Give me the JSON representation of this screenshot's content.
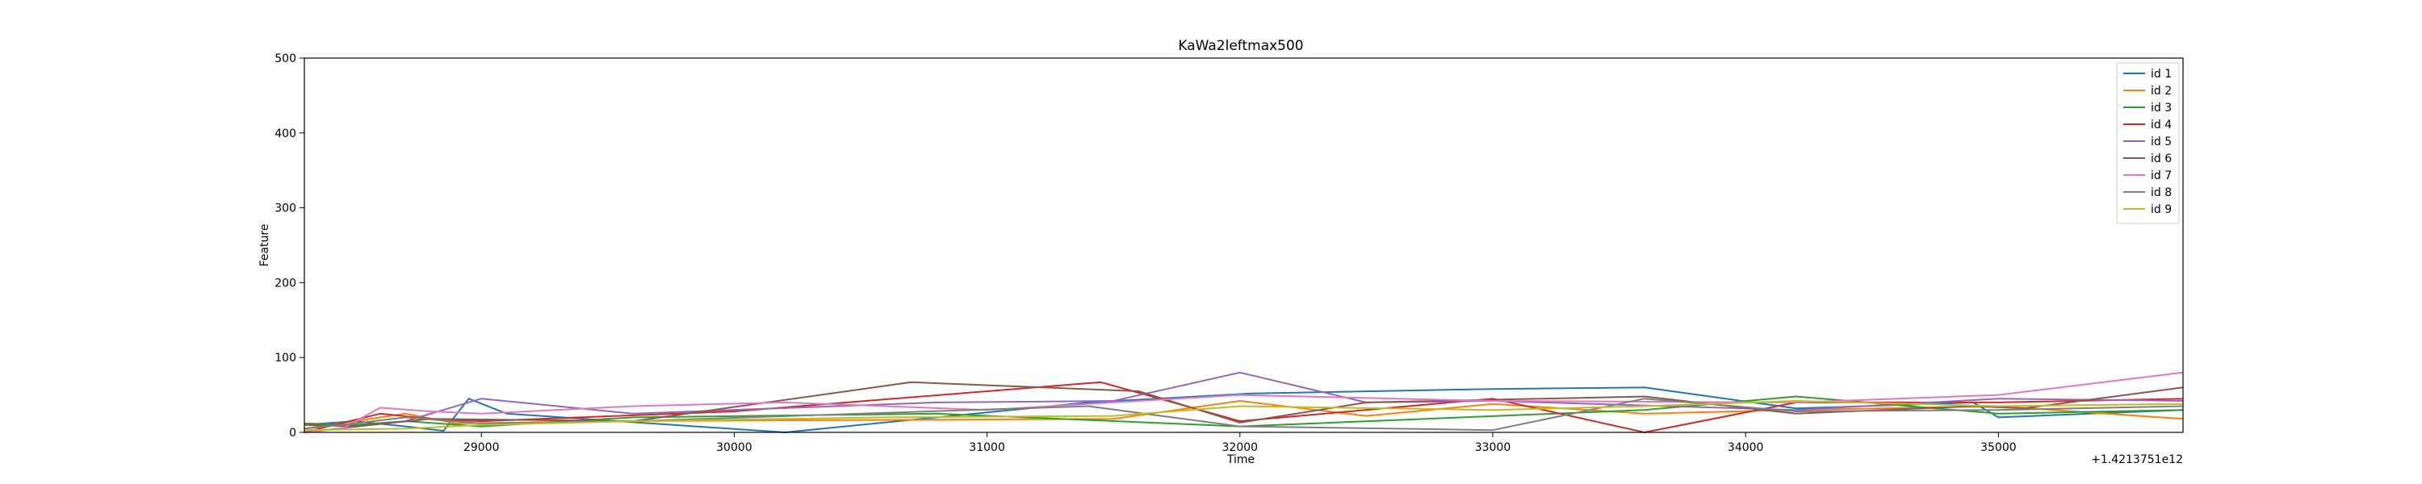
{
  "chart_data": {
    "type": "line",
    "title": "KaWa2leftmax500",
    "xlabel": "Time",
    "ylabel": "Feature",
    "x_offset_label": "+1.4213751e12",
    "xlim": [
      28300,
      35730
    ],
    "ylim": [
      0,
      500
    ],
    "x_ticks": [
      29000,
      30000,
      31000,
      32000,
      33000,
      34000,
      35000
    ],
    "y_ticks": [
      0,
      100,
      200,
      300,
      400,
      500
    ],
    "grid": false,
    "legend_position": "top-right",
    "colors": [
      "#1f77b4",
      "#ff7f0e",
      "#2ca02c",
      "#d62728",
      "#9467bd",
      "#8c564b",
      "#e377c2",
      "#7f7f7f",
      "#bcbd22"
    ],
    "series": [
      {
        "name": "id 1",
        "x": [
          28300,
          28500,
          28700,
          28850,
          28950,
          29100,
          30200,
          31400,
          32050,
          33000,
          33600,
          34200,
          34900,
          35000,
          35730
        ],
        "y": [
          10,
          15,
          8,
          2,
          45,
          25,
          0,
          40,
          52,
          58,
          60,
          32,
          40,
          20,
          30
        ]
      },
      {
        "name": "id 2",
        "x": [
          28300,
          28500,
          28700,
          28900,
          29500,
          31500,
          32000,
          32500,
          33000,
          33600,
          34200,
          35000,
          35730
        ],
        "y": [
          5,
          15,
          25,
          12,
          15,
          18,
          42,
          22,
          38,
          25,
          30,
          35,
          18
        ]
      },
      {
        "name": "id 3",
        "x": [
          28300,
          28500,
          28700,
          29000,
          29600,
          30800,
          32000,
          33600,
          34200,
          35000,
          35730
        ],
        "y": [
          12,
          10,
          15,
          8,
          20,
          25,
          8,
          30,
          48,
          25,
          30
        ]
      },
      {
        "name": "id 4",
        "x": [
          28300,
          28600,
          28800,
          29000,
          30000,
          31450,
          32000,
          33000,
          33600,
          34200,
          35000,
          35730
        ],
        "y": [
          0,
          25,
          18,
          15,
          28,
          67,
          15,
          45,
          0,
          40,
          40,
          45
        ]
      },
      {
        "name": "id 5",
        "x": [
          28300,
          28700,
          29000,
          29600,
          30800,
          31500,
          32000,
          32500,
          33000,
          34200,
          35000,
          35730
        ],
        "y": [
          0,
          15,
          45,
          25,
          40,
          42,
          80,
          40,
          42,
          30,
          45,
          42
        ]
      },
      {
        "name": "id 6",
        "x": [
          28300,
          28500,
          28800,
          29600,
          30700,
          31600,
          32000,
          32500,
          33600,
          34200,
          34900,
          35100,
          35730
        ],
        "y": [
          10,
          8,
          18,
          15,
          67,
          55,
          13,
          40,
          48,
          25,
          35,
          32,
          60
        ]
      },
      {
        "name": "id 7",
        "x": [
          28300,
          28450,
          28600,
          28800,
          29000,
          29600,
          30200,
          31000,
          32000,
          33000,
          34200,
          35000,
          35730
        ],
        "y": [
          0,
          5,
          33,
          28,
          25,
          35,
          40,
          30,
          50,
          42,
          40,
          50,
          80
        ]
      },
      {
        "name": "id 8",
        "x": [
          28300,
          28500,
          28700,
          29000,
          29600,
          30500,
          31400,
          32000,
          33000,
          33600,
          34200,
          35000,
          35730
        ],
        "y": [
          5,
          12,
          20,
          12,
          15,
          25,
          35,
          8,
          3,
          45,
          28,
          30,
          35
        ]
      },
      {
        "name": "id 9",
        "x": [
          28300,
          28700,
          29000,
          29600,
          30600,
          31500,
          32000,
          33000,
          33600,
          34200,
          35000,
          35730
        ],
        "y": [
          3,
          5,
          10,
          15,
          20,
          22,
          35,
          30,
          35,
          42,
          35,
          38
        ]
      }
    ]
  }
}
